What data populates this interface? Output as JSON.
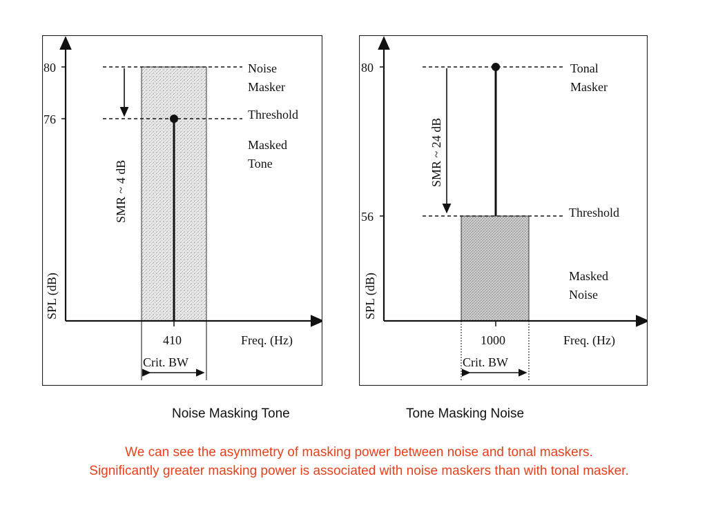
{
  "left_diagram": {
    "y_ticks": [
      "80",
      "76"
    ],
    "y_axis_label": "SPL (dB)",
    "smr_label": "SMR ~ 4 dB",
    "masker_label": [
      "Noise",
      "Masker"
    ],
    "threshold_label": "Threshold",
    "masked_label": [
      "Masked",
      "Tone"
    ],
    "freq_tick": "410",
    "x_axis_label": "Freq. (Hz)",
    "bandwidth_label": "Crit. BW"
  },
  "right_diagram": {
    "y_ticks": [
      "80",
      "56"
    ],
    "y_axis_label": "SPL (dB)",
    "smr_label": "SMR ~ 24 dB",
    "masker_label": [
      "Tonal",
      "Masker"
    ],
    "threshold_label": "Threshold",
    "masked_label": [
      "Masked",
      "Noise"
    ],
    "freq_tick": "1000",
    "x_axis_label": "Freq. (Hz)",
    "bandwidth_label": "Crit. BW"
  },
  "captions": {
    "left": "Noise Masking Tone",
    "right": "Tone Masking Noise"
  },
  "note": {
    "line1": "We can see the asymmetry of masking power between noise and tonal maskers.",
    "line2": "Significantly greater masking power is associated with noise maskers than with tonal masker."
  },
  "colors": {
    "note_text": "#e8401c",
    "shading": "#d4d4d4",
    "ink": "#111111"
  }
}
